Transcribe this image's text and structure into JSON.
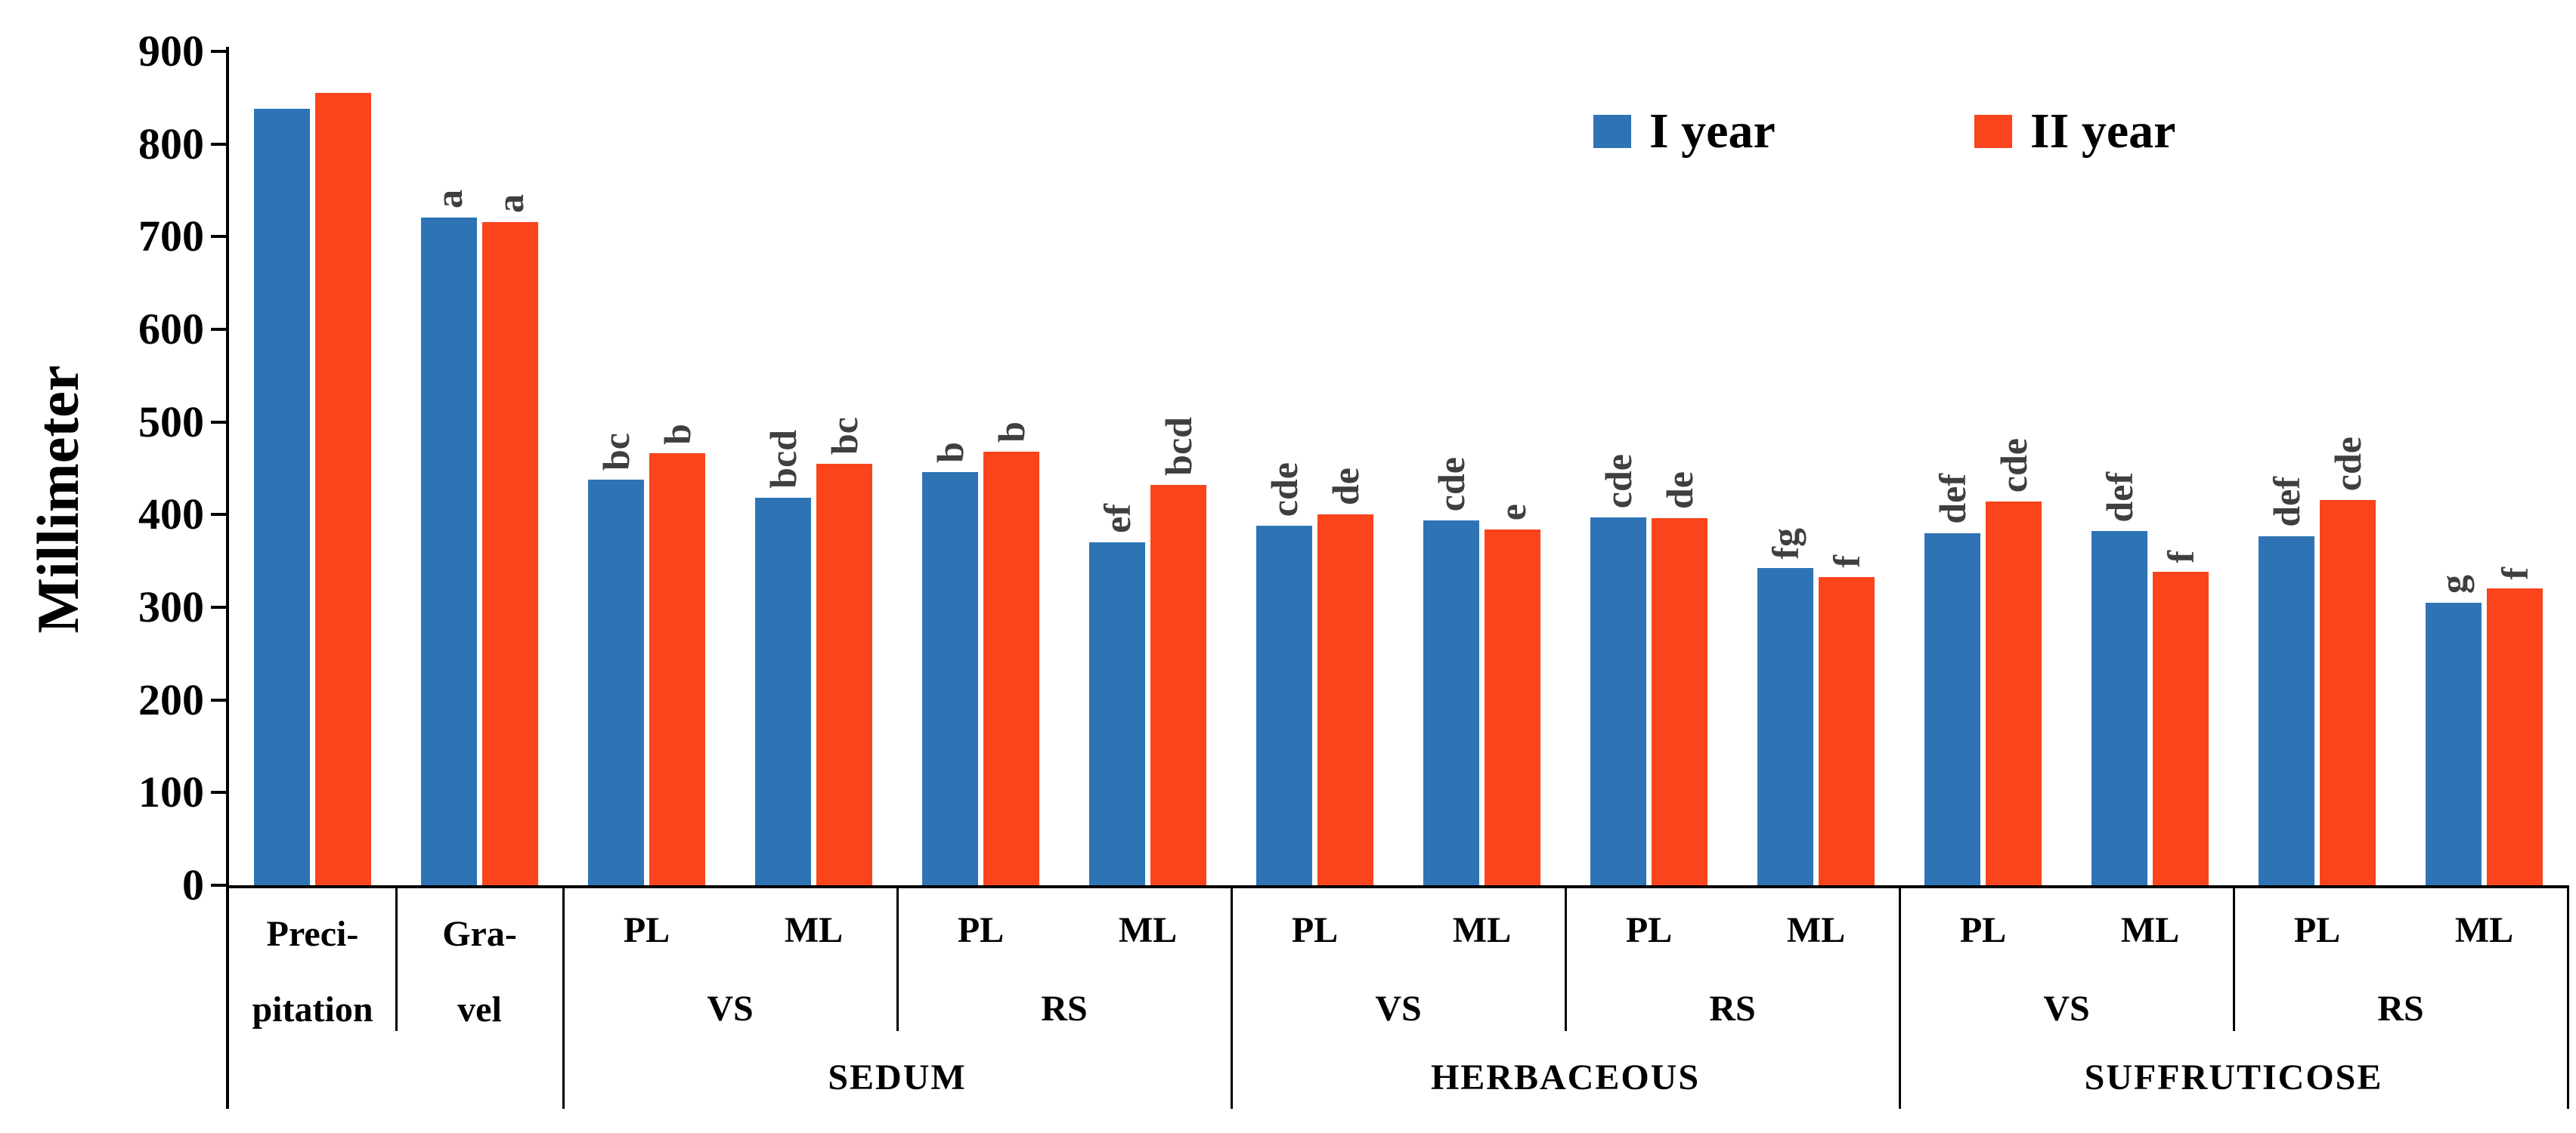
{
  "chart_data": {
    "type": "bar",
    "title": "",
    "ylabel": "Millimeter",
    "ylim": [
      0,
      900
    ],
    "ytick_step": 100,
    "yticks": [
      "0",
      "100",
      "200",
      "300",
      "400",
      "500",
      "600",
      "700",
      "800",
      "900"
    ],
    "grid": false,
    "legend_position": "top-right-inside",
    "sig_letter_color": "#3F3F3F",
    "axis_color": "#000000",
    "series": [
      {
        "name": "I year",
        "color": "#2E74B5",
        "values": [
          838,
          721,
          438,
          418,
          446,
          370,
          388,
          394,
          397,
          342,
          380,
          382,
          377,
          305
        ],
        "sig_letters": [
          "",
          "a",
          "bc",
          "bcd",
          "b",
          "ef",
          "cde",
          "cde",
          "cde",
          "fg",
          "def",
          "def",
          "def",
          "g"
        ]
      },
      {
        "name": "II year",
        "color": "#FB431C",
        "values": [
          855,
          716,
          466,
          455,
          468,
          432,
          400,
          384,
          396,
          333,
          414,
          338,
          416,
          320
        ],
        "sig_letters": [
          "",
          "a",
          "b",
          "bc",
          "b",
          "bcd",
          "de",
          "e",
          "de",
          "f",
          "cde",
          "f",
          "cde",
          "f"
        ]
      }
    ],
    "x_axis": {
      "cells": [
        "Preci-|pitation",
        "Gra-|vel",
        "PL",
        "ML",
        "PL",
        "ML",
        "PL",
        "ML",
        "PL",
        "ML",
        "PL",
        "ML",
        "PL",
        "ML"
      ],
      "level2": [
        {
          "label": "VS",
          "start": 2,
          "span": 2
        },
        {
          "label": "RS",
          "start": 4,
          "span": 2
        },
        {
          "label": "VS",
          "start": 6,
          "span": 2
        },
        {
          "label": "RS",
          "start": 8,
          "span": 2
        },
        {
          "label": "VS",
          "start": 10,
          "span": 2
        },
        {
          "label": "RS",
          "start": 12,
          "span": 2
        }
      ],
      "level3": [
        {
          "label": "SEDUM",
          "start": 2,
          "span": 4
        },
        {
          "label": "HERBACEOUS",
          "start": 6,
          "span": 4
        },
        {
          "label": "SUFFRUTICOSE",
          "start": 10,
          "span": 4
        }
      ],
      "medium_dividers_after_cell": [
        1,
        4,
        8,
        12
      ],
      "tall_dividers_after_cell": [
        2,
        6,
        10,
        14
      ]
    }
  }
}
